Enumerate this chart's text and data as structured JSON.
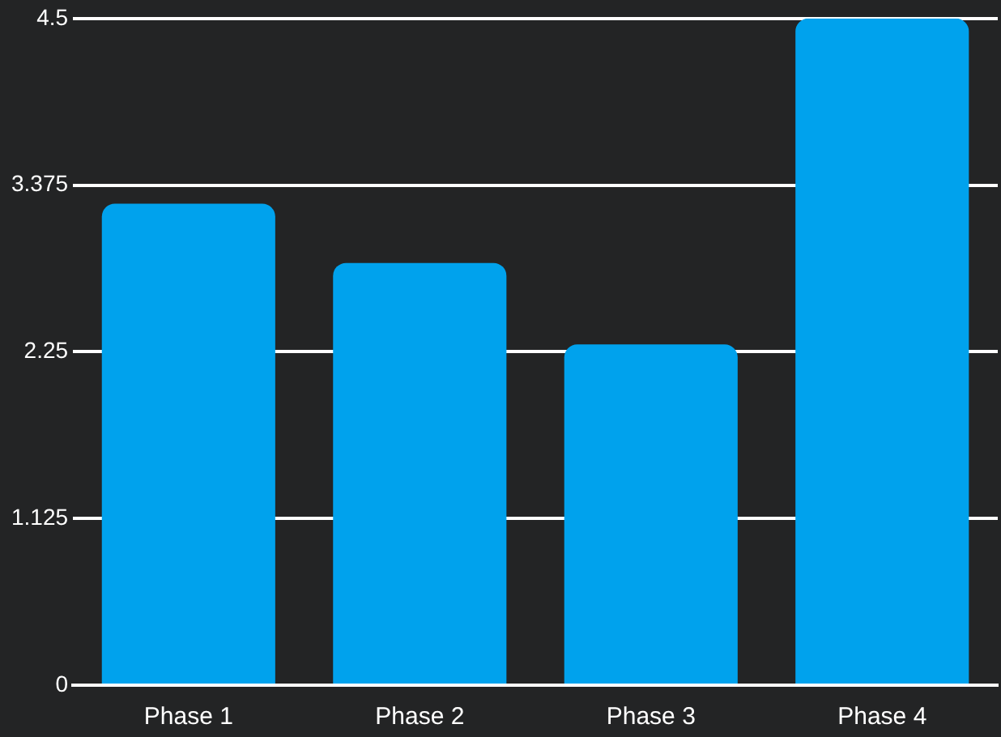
{
  "chart_data": {
    "type": "bar",
    "categories": [
      "Phase 1",
      "Phase 2",
      "Phase 3",
      "Phase 4"
    ],
    "values": [
      3.25,
      2.85,
      2.3,
      4.5
    ],
    "color": "#00a2ed",
    "ylim": [
      0,
      4.5
    ],
    "yticks": [
      0,
      1.125,
      2.25,
      3.375,
      4.5
    ],
    "grid": "y",
    "legend": false
  }
}
